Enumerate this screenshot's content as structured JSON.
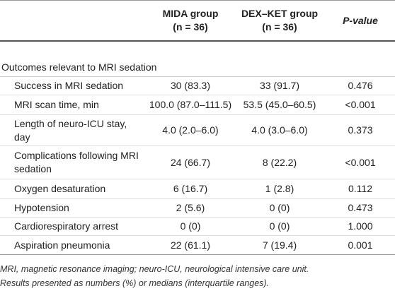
{
  "table": {
    "header": [
      {
        "name": "",
        "sub": ""
      },
      {
        "name": "MIDA group",
        "sub": "(n = 36)"
      },
      {
        "name": "DEX–KET group",
        "sub": "(n = 36)"
      },
      {
        "name": "P-value",
        "sub": ""
      }
    ],
    "section": "Outcomes relevant to MRI sedation",
    "rows": [
      [
        "Success in MRI sedation",
        "30 (83.3)",
        "33 (91.7)",
        "0.476"
      ],
      [
        "MRI scan time, min",
        "100.0 (87.0–111.5)",
        "53.5 (45.0–60.5)",
        "<0.001"
      ],
      [
        "Length of neuro-ICU stay, day",
        "4.0 (2.0–6.0)",
        "4.0 (3.0–6.0)",
        "0.373"
      ],
      [
        "Complications following MRI sedation",
        "24 (66.7)",
        "8 (22.2)",
        "<0.001"
      ],
      [
        "Oxygen desaturation",
        "6 (16.7)",
        "1 (2.8)",
        "0.112"
      ],
      [
        "Hypotension",
        "2 (5.6)",
        "0 (0)",
        "0.473"
      ],
      [
        "Cardiorespiratory arrest",
        "0 (0)",
        "0 (0)",
        "1.000"
      ],
      [
        "Aspiration pneumonia",
        "22 (61.1)",
        "7 (19.4)",
        "0.001"
      ]
    ]
  },
  "footnotes": [
    "MRI, magnetic resonance imaging; neuro-ICU, neurological intensive care unit.",
    "Results presented as numbers (%) or medians (interquartile ranges)."
  ]
}
